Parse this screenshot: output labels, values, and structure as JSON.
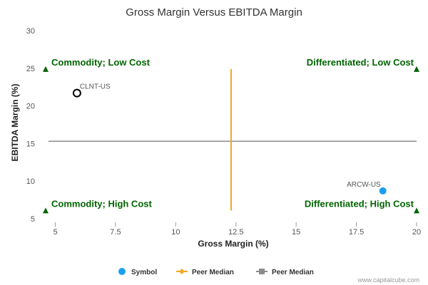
{
  "chart_data": {
    "type": "scatter",
    "title": "Gross Margin Versus EBITDA Margin",
    "xlabel": "Gross Margin (%)",
    "ylabel": "EBITDA Margin (%)",
    "xlim": [
      4.6,
      20
    ],
    "ylim": [
      5,
      30
    ],
    "xticks": [
      "5",
      "7.5",
      "10",
      "12.5",
      "15",
      "17.5",
      "20"
    ],
    "xtick_values": [
      5,
      7.5,
      10,
      12.5,
      15,
      17.5,
      20
    ],
    "yticks": [
      "5",
      "10",
      "15",
      "20",
      "25",
      "30"
    ],
    "ytick_values": [
      5,
      10,
      15,
      20,
      25,
      30
    ],
    "points": [
      {
        "label": "CLNT-US",
        "x": 5.9,
        "y": 21.7,
        "style": "hollow",
        "color": "#000000"
      },
      {
        "label": "ARCW-US",
        "x": 18.6,
        "y": 8.7,
        "style": "filled",
        "color": "#1aa0ec"
      }
    ],
    "peer_median_x": {
      "value": 12.3,
      "y_from": 6.1,
      "y_to": 24.9,
      "color": "#f5a623"
    },
    "peer_median_y": {
      "value": 15.3,
      "color": "#8c8c8c"
    },
    "quadrants": [
      {
        "label": "Commodity; Low Cost",
        "x": 4.6,
        "y": 24.9,
        "anchor": "start"
      },
      {
        "label": "Differentiated; Low Cost",
        "x": 20,
        "y": 24.9,
        "anchor": "end"
      },
      {
        "label": "Commodity; High Cost",
        "x": 4.6,
        "y": 6.1,
        "anchor": "start"
      },
      {
        "label": "Differentiated; High Cost",
        "x": 20,
        "y": 6.1,
        "anchor": "end"
      }
    ],
    "quadrant_color": "#006400",
    "legend": {
      "placement": "bottom",
      "items": [
        {
          "name": "Symbol",
          "kind": "dot",
          "color": "#1aa0ec"
        },
        {
          "name": "Peer Median",
          "kind": "line-diamond",
          "color": "#f5a623"
        },
        {
          "name": "Peer Median",
          "kind": "line-square",
          "color": "#8c8c8c"
        }
      ]
    },
    "grid": false
  },
  "footer": {
    "credit": "www.capitalcube.com"
  }
}
